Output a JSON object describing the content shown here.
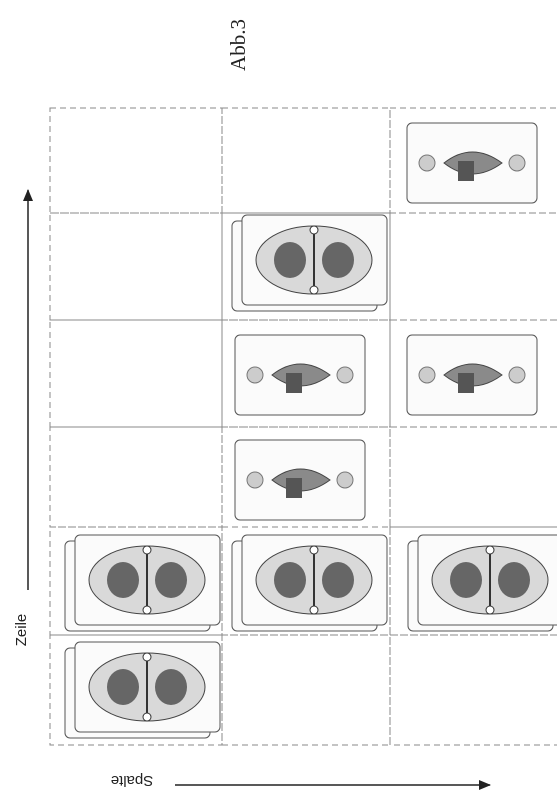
{
  "caption": "Abb.3",
  "axes": {
    "row_label": "Zeile",
    "column_label": "Spalte"
  }
}
